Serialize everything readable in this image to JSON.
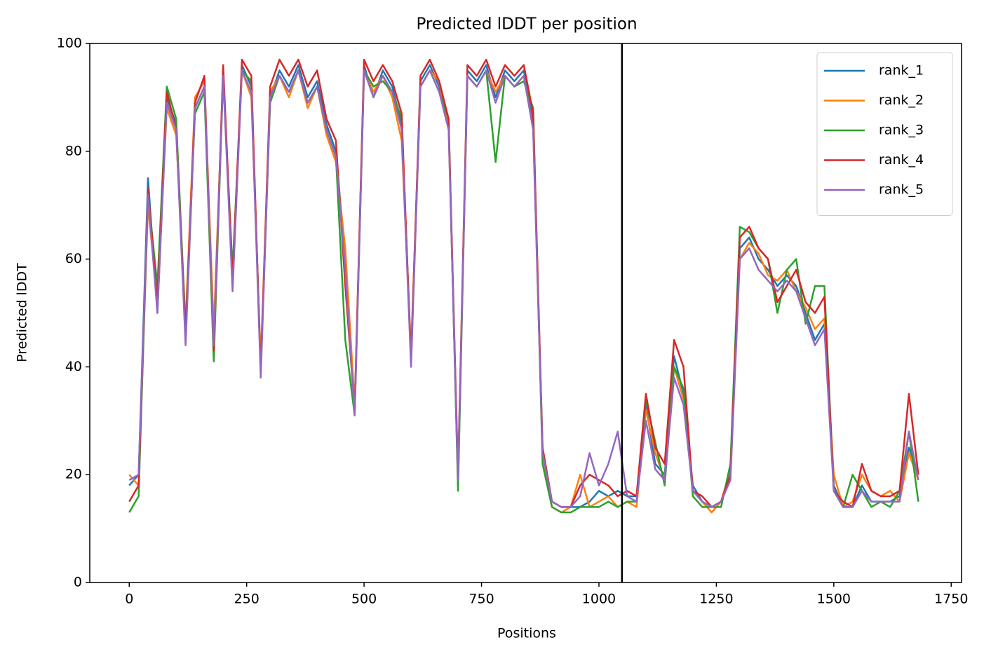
{
  "chart_data": {
    "type": "line",
    "title": "Predicted lDDT per position",
    "xlabel": "Positions",
    "ylabel": "Predicted lDDT",
    "x": [
      0,
      20,
      40,
      60,
      80,
      100,
      120,
      140,
      160,
      180,
      200,
      220,
      240,
      260,
      280,
      300,
      320,
      340,
      360,
      380,
      400,
      420,
      440,
      460,
      480,
      500,
      520,
      540,
      560,
      580,
      600,
      620,
      640,
      660,
      680,
      700,
      720,
      740,
      760,
      780,
      800,
      820,
      840,
      860,
      880,
      900,
      920,
      940,
      960,
      980,
      1000,
      1020,
      1040,
      1060,
      1080,
      1100,
      1120,
      1140,
      1160,
      1180,
      1200,
      1220,
      1240,
      1260,
      1280,
      1300,
      1320,
      1340,
      1360,
      1380,
      1400,
      1420,
      1440,
      1460,
      1480,
      1500,
      1520,
      1540,
      1560,
      1580,
      1600,
      1620,
      1640,
      1660,
      1680
    ],
    "series": [
      {
        "name": "rank_1",
        "color": "#1f77b4",
        "values": [
          18,
          20,
          75,
          50,
          90,
          85,
          45,
          88,
          92,
          45,
          95,
          55,
          96,
          92,
          40,
          90,
          95,
          92,
          96,
          90,
          93,
          85,
          80,
          60,
          32,
          96,
          90,
          95,
          92,
          85,
          42,
          93,
          96,
          92,
          85,
          18,
          95,
          93,
          96,
          90,
          95,
          93,
          95,
          85,
          25,
          15,
          14,
          14,
          14,
          15,
          17,
          16,
          17,
          16,
          16,
          33,
          22,
          20,
          42,
          35,
          18,
          15,
          14,
          15,
          20,
          62,
          64,
          60,
          58,
          55,
          57,
          55,
          50,
          45,
          48,
          18,
          14,
          14,
          18,
          15,
          15,
          15,
          16,
          25,
          20
        ]
      },
      {
        "name": "rank_2",
        "color": "#ff7f0e",
        "values": [
          20,
          18,
          70,
          52,
          88,
          83,
          48,
          90,
          93,
          47,
          94,
          57,
          95,
          90,
          41,
          91,
          94,
          90,
          95,
          88,
          92,
          83,
          78,
          62,
          33,
          95,
          91,
          94,
          90,
          82,
          43,
          92,
          95,
          93,
          84,
          20,
          94,
          92,
          95,
          91,
          94,
          92,
          94,
          84,
          24,
          14,
          13,
          14,
          20,
          14,
          15,
          16,
          14,
          15,
          14,
          32,
          24,
          19,
          40,
          34,
          17,
          15,
          13,
          15,
          21,
          60,
          63,
          61,
          57,
          56,
          58,
          54,
          51,
          47,
          49,
          20,
          14,
          15,
          20,
          17,
          16,
          17,
          15,
          24,
          19
        ]
      },
      {
        "name": "rank_3",
        "color": "#2ca02c",
        "values": [
          13,
          16,
          72,
          55,
          92,
          86,
          47,
          87,
          91,
          41,
          94,
          58,
          95,
          93,
          39,
          89,
          94,
          91,
          95,
          89,
          92,
          84,
          79,
          45,
          31,
          95,
          92,
          93,
          91,
          86,
          41,
          92,
          95,
          91,
          86,
          17,
          94,
          92,
          95,
          78,
          94,
          92,
          93,
          88,
          22,
          14,
          13,
          13,
          14,
          14,
          14,
          15,
          14,
          15,
          15,
          34,
          26,
          18,
          40,
          36,
          16,
          14,
          14,
          14,
          22,
          66,
          65,
          62,
          60,
          50,
          58,
          60,
          48,
          55,
          55,
          17,
          14,
          20,
          17,
          14,
          15,
          14,
          17,
          28,
          15
        ]
      },
      {
        "name": "rank_4",
        "color": "#d62728",
        "values": [
          15,
          18,
          73,
          52,
          91,
          84,
          46,
          89,
          94,
          43,
          96,
          56,
          97,
          94,
          39,
          92,
          97,
          94,
          97,
          92,
          95,
          86,
          82,
          55,
          32,
          97,
          93,
          96,
          93,
          87,
          41,
          94,
          97,
          93,
          86,
          20,
          96,
          94,
          97,
          92,
          96,
          94,
          96,
          87,
          25,
          15,
          14,
          14,
          18,
          20,
          19,
          18,
          16,
          17,
          16,
          35,
          25,
          22,
          45,
          40,
          17,
          16,
          14,
          15,
          20,
          64,
          66,
          62,
          60,
          52,
          55,
          58,
          52,
          50,
          53,
          17,
          15,
          14,
          22,
          17,
          16,
          16,
          17,
          35,
          20
        ]
      },
      {
        "name": "rank_5",
        "color": "#9467bd",
        "values": [
          19,
          20,
          72,
          50,
          89,
          84,
          44,
          88,
          92,
          44,
          94,
          54,
          95,
          91,
          38,
          90,
          94,
          91,
          95,
          89,
          92,
          84,
          79,
          58,
          31,
          95,
          90,
          94,
          91,
          84,
          40,
          92,
          95,
          91,
          84,
          19,
          94,
          92,
          95,
          89,
          94,
          92,
          94,
          84,
          24,
          15,
          14,
          14,
          16,
          24,
          18,
          22,
          28,
          16,
          15,
          30,
          21,
          19,
          38,
          33,
          17,
          15,
          14,
          15,
          19,
          60,
          62,
          58,
          56,
          54,
          56,
          54,
          49,
          44,
          47,
          17,
          14,
          14,
          17,
          15,
          15,
          15,
          15,
          28,
          19
        ]
      }
    ],
    "vline": 1049,
    "vline_color": "#000000",
    "xlim": [
      -84,
      1772
    ],
    "ylim": [
      0,
      100
    ],
    "xticks": [
      0,
      250,
      500,
      750,
      1000,
      1250,
      1500,
      1750
    ],
    "yticks": [
      0,
      20,
      40,
      60,
      80,
      100
    ],
    "legend": "upper right"
  }
}
